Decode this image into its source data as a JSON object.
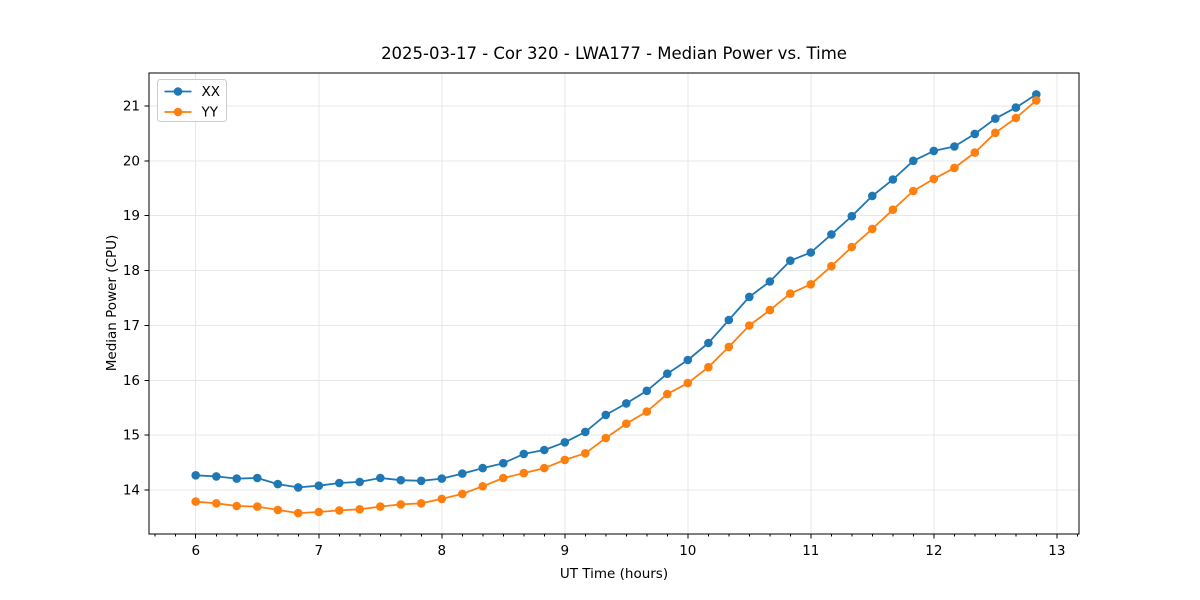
{
  "chart_data": {
    "type": "line",
    "title": "2025-03-17 - Cor 320 - LWA177 - Median Power vs. Time",
    "xlabel": "UT Time (hours)",
    "ylabel": "Median Power (CPU)",
    "xlim": [
      5.62,
      13.18
    ],
    "ylim": [
      13.2,
      21.6
    ],
    "x_ticks": [
      6,
      7,
      8,
      9,
      10,
      11,
      12,
      13
    ],
    "y_ticks": [
      14,
      15,
      16,
      17,
      18,
      19,
      20,
      21
    ],
    "x_minor_step": 0.16667,
    "grid": true,
    "legend_position": "upper left",
    "marker": "circle",
    "x": [
      6.0,
      6.167,
      6.333,
      6.5,
      6.667,
      6.833,
      7.0,
      7.167,
      7.333,
      7.5,
      7.667,
      7.833,
      8.0,
      8.167,
      8.333,
      8.5,
      8.667,
      8.833,
      9.0,
      9.167,
      9.333,
      9.5,
      9.667,
      9.833,
      10.0,
      10.167,
      10.333,
      10.5,
      10.667,
      10.833,
      11.0,
      11.167,
      11.333,
      11.5,
      11.667,
      11.833,
      12.0,
      12.167,
      12.333,
      12.5,
      12.667,
      12.833
    ],
    "series": [
      {
        "name": "XX",
        "color": "#1f77b4",
        "values": [
          14.27,
          14.25,
          14.21,
          14.22,
          14.11,
          14.05,
          14.08,
          14.13,
          14.15,
          14.22,
          14.18,
          14.17,
          14.21,
          14.3,
          14.4,
          14.49,
          14.66,
          14.73,
          14.87,
          15.06,
          15.37,
          15.58,
          15.81,
          16.12,
          16.37,
          16.68,
          17.1,
          17.52,
          17.8,
          18.18,
          18.33,
          18.66,
          18.99,
          19.36,
          19.66,
          20.0,
          20.18,
          20.26,
          20.49,
          20.77,
          20.97,
          21.21
        ]
      },
      {
        "name": "YY",
        "color": "#ff7f0e",
        "values": [
          13.79,
          13.76,
          13.71,
          13.7,
          13.64,
          13.58,
          13.6,
          13.63,
          13.65,
          13.7,
          13.74,
          13.76,
          13.84,
          13.93,
          14.07,
          14.22,
          14.31,
          14.4,
          14.55,
          14.67,
          14.95,
          15.21,
          15.43,
          15.75,
          15.95,
          16.24,
          16.61,
          17.0,
          17.28,
          17.58,
          17.75,
          18.08,
          18.43,
          18.76,
          19.11,
          19.45,
          19.67,
          19.87,
          20.15,
          20.51,
          20.78,
          21.1
        ]
      }
    ],
    "colors": {
      "grid": "#e7e7e7",
      "spine": "#000000",
      "text": "#000000",
      "legend_border": "#cccccc",
      "legend_bg": "#ffffff"
    }
  }
}
